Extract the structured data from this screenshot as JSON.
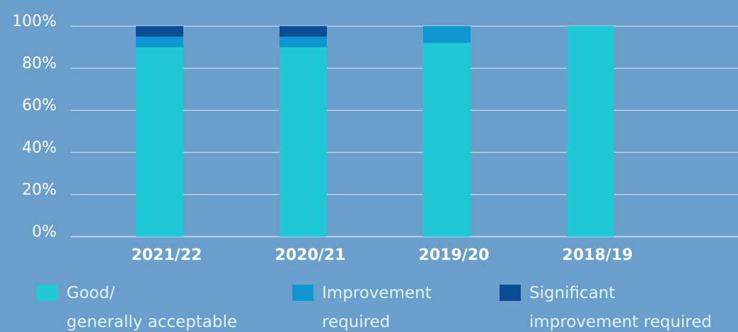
{
  "chart_data": {
    "type": "stacked_bar",
    "categories": [
      "2021/22",
      "2020/21",
      "2019/20",
      "2018/19"
    ],
    "series": [
      {
        "name": "Good/\ngenerally acceptable",
        "color": "#1fc9d6",
        "values": [
          90,
          90,
          92,
          100
        ]
      },
      {
        "name": "Improvement\nrequired",
        "color": "#0f97d1",
        "values": [
          5,
          5,
          8,
          0
        ]
      },
      {
        "name": "Significant\nimprovement required",
        "color": "#0a4d96",
        "values": [
          5,
          5,
          0,
          0
        ]
      }
    ],
    "ylim": [
      0,
      100
    ],
    "yticks": [
      {
        "value": 0,
        "label": "0%"
      },
      {
        "value": 20,
        "label": "20%"
      },
      {
        "value": 40,
        "label": "40%"
      },
      {
        "value": 60,
        "label": "60%"
      },
      {
        "value": 80,
        "label": "80%"
      },
      {
        "value": 100,
        "label": "100%"
      }
    ],
    "grid": true
  }
}
